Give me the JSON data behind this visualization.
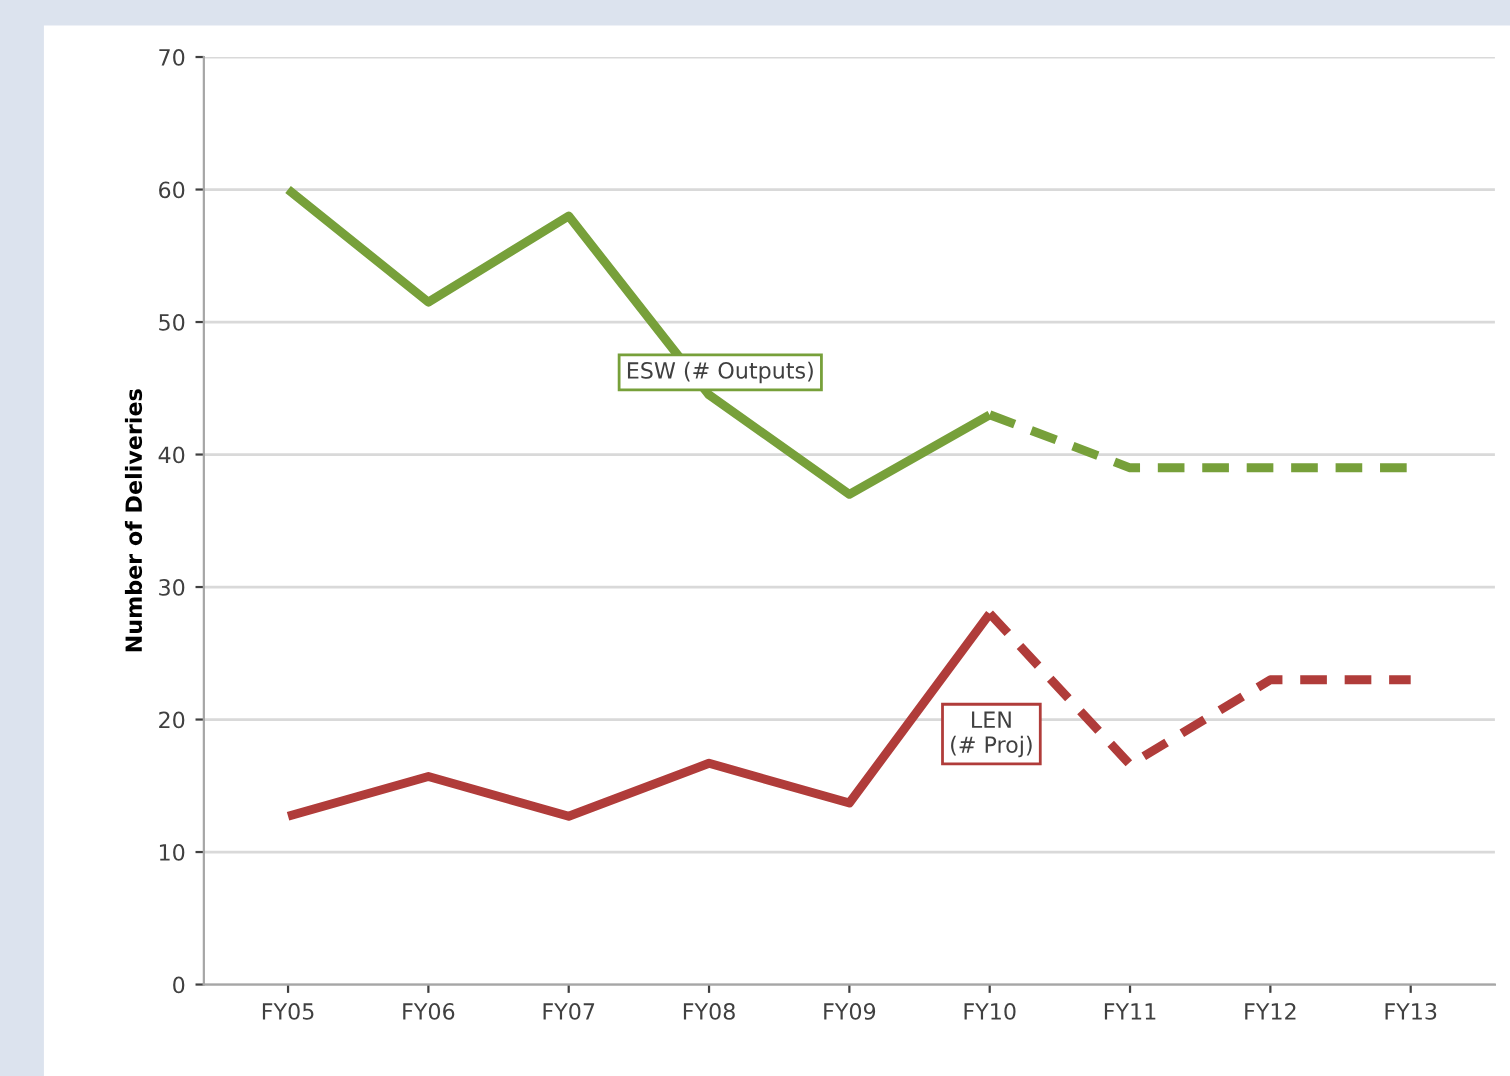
{
  "chart_data": {
    "type": "line",
    "ylabel": "Number of Deliveries",
    "categories": [
      "FY05",
      "FY06",
      "FY07",
      "FY08",
      "FY09",
      "FY10",
      "FY11",
      "FY12",
      "FY13"
    ],
    "series": [
      {
        "name": "ESW (# Outputs)",
        "color": "#77a03a",
        "values": [
          60,
          51.5,
          58,
          44.5,
          37,
          43,
          null,
          null,
          null
        ],
        "line_style": "solid"
      },
      {
        "color": "#77a03a",
        "values": [
          null,
          null,
          null,
          null,
          null,
          43,
          39,
          39,
          39
        ],
        "line_style": "dashed"
      },
      {
        "name": "LEN\n(# Proj)",
        "color": "#b03c3a",
        "values": [
          12.7,
          15.7,
          12.7,
          16.7,
          13.7,
          28,
          null,
          null,
          null
        ],
        "line_style": "solid"
      },
      {
        "color": "#b03c3a",
        "values": [
          null,
          null,
          null,
          null,
          null,
          28,
          16.6,
          23,
          23
        ],
        "line_style": "dashed"
      }
    ],
    "ylim": [
      0,
      70
    ],
    "yticks": [
      0,
      10,
      20,
      30,
      40,
      50,
      60,
      70
    ],
    "grid": "y",
    "marker": "none"
  }
}
